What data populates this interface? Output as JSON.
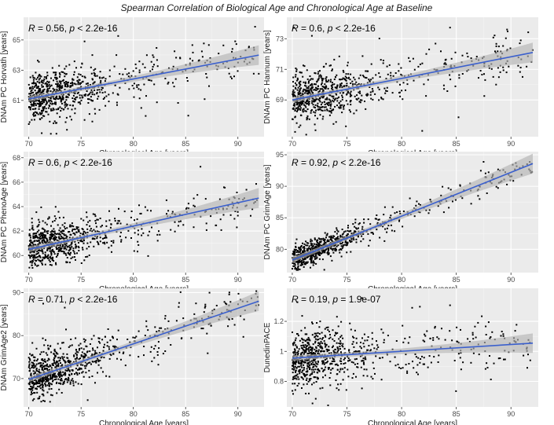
{
  "title": "Spearman Correlation of Biological Age and Chronological Age at Baseline",
  "colors": {
    "panel_bg": "#ebebeb",
    "grid_major": "#ffffff",
    "points": "#000000",
    "fit_line": "#3a5fcd",
    "ci_band": "#b3b3b3"
  },
  "chart_data": [
    {
      "type": "scatter",
      "xlabel": "Chronological Age [years]",
      "ylabel": "DNAm PC Horvath [years]",
      "annotation": {
        "r": "0.56",
        "p": "2.2e-16",
        "relation": "<"
      },
      "xlim": [
        69.5,
        92.5
      ],
      "ylim": [
        58.6,
        66.5
      ],
      "xticks": [
        70,
        75,
        80,
        85,
        90
      ],
      "yticks": [
        61,
        63,
        65
      ],
      "fit": {
        "x": [
          70,
          92
        ],
        "y": [
          61.1,
          64.0
        ]
      },
      "scatter": {
        "n": 780,
        "sd": 0.75,
        "outlier_rate": 0.05,
        "seed": 11
      }
    },
    {
      "type": "scatter",
      "xlabel": "Chronological Age [years]",
      "ylabel": "DNAm PC Hannum [years]",
      "annotation": {
        "r": "0.6",
        "p": "2.2e-16",
        "relation": "<"
      },
      "xlim": [
        69.5,
        92.5
      ],
      "ylim": [
        66.6,
        74.4
      ],
      "xticks": [
        70,
        75,
        80,
        85,
        90
      ],
      "yticks": [
        69,
        71,
        73
      ],
      "fit": {
        "x": [
          70,
          92
        ],
        "y": [
          69.0,
          72.1
        ]
      },
      "scatter": {
        "n": 780,
        "sd": 0.75,
        "outlier_rate": 0.05,
        "seed": 23
      }
    },
    {
      "type": "scatter",
      "xlabel": "Chronological Age [years]",
      "ylabel": "DNAm PC PhenoAge [years]",
      "annotation": {
        "r": "0.6",
        "p": "2.2e-16",
        "relation": "<"
      },
      "xlim": [
        69.5,
        92.5
      ],
      "ylim": [
        58.6,
        68.5
      ],
      "xticks": [
        70,
        75,
        80,
        85,
        90
      ],
      "yticks": [
        60,
        62,
        64,
        66,
        68
      ],
      "fit": {
        "x": [
          70,
          92
        ],
        "y": [
          60.5,
          64.7
        ]
      },
      "scatter": {
        "n": 780,
        "sd": 0.85,
        "outlier_rate": 0.05,
        "seed": 37
      }
    },
    {
      "type": "scatter",
      "xlabel": "Chronological Age [years]",
      "ylabel": "DNAm PC GrimAge [years]",
      "annotation": {
        "r": "0.92",
        "p": "2.2e-16",
        "relation": "<"
      },
      "xlim": [
        69.5,
        92.5
      ],
      "ylim": [
        76.3,
        95.5
      ],
      "xticks": [
        70,
        75,
        80,
        85,
        90
      ],
      "yticks": [
        80,
        85,
        90,
        95
      ],
      "fit": {
        "x": [
          70,
          92
        ],
        "y": [
          78.3,
          93.6
        ]
      },
      "scatter": {
        "n": 780,
        "sd": 0.9,
        "outlier_rate": 0.02,
        "seed": 41
      }
    },
    {
      "type": "scatter",
      "xlabel": "Chronological Age [years]",
      "ylabel": "DNAm GrimAge2 [years]",
      "annotation": {
        "r": "0.71",
        "p": "2.2e-16",
        "relation": "<"
      },
      "xlim": [
        69.5,
        92.5
      ],
      "ylim": [
        63.4,
        91.0
      ],
      "xticks": [
        70,
        75,
        80,
        85,
        90
      ],
      "yticks": [
        70,
        80,
        90
      ],
      "fit": {
        "x": [
          70,
          92
        ],
        "y": [
          69.8,
          88.0
        ]
      },
      "scatter": {
        "n": 780,
        "sd": 2.6,
        "outlier_rate": 0.04,
        "seed": 53
      }
    },
    {
      "type": "scatter",
      "xlabel": "Chronological Age [years]",
      "ylabel": "DunedinPACE",
      "annotation": {
        "r": "0.19",
        "p": "1.9e-07",
        "relation": "="
      },
      "xlim": [
        69.5,
        92.5
      ],
      "ylim": [
        0.63,
        1.42
      ],
      "xticks": [
        70,
        75,
        80,
        85,
        90
      ],
      "yticks": [
        0.8,
        1.0,
        1.2
      ],
      "fit": {
        "x": [
          70,
          92
        ],
        "y": [
          0.955,
          1.055
        ]
      },
      "scatter": {
        "n": 780,
        "sd": 0.09,
        "outlier_rate": 0.04,
        "seed": 67
      }
    }
  ]
}
